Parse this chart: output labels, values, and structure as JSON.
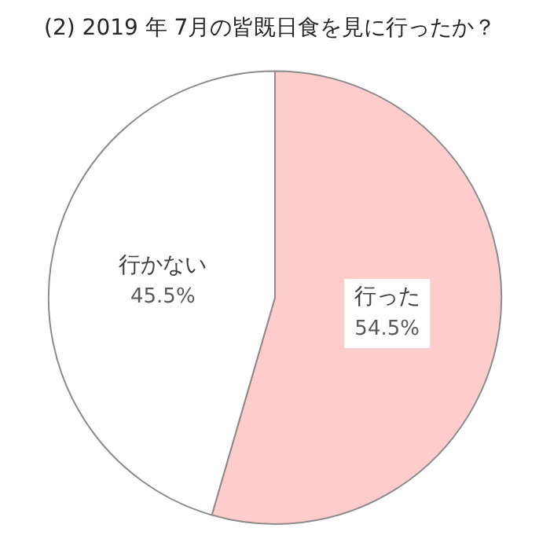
{
  "chart_data": {
    "type": "pie",
    "title": "(2) 2019 年 7月の皆既日食を見に行ったか？",
    "categories": [
      "行った",
      "行かない"
    ],
    "values": [
      54.5,
      45.5
    ],
    "value_labels": [
      "54.5%",
      "45.5%"
    ],
    "colors": [
      "#ffcccc",
      "#ffffff"
    ],
    "legend": false
  }
}
